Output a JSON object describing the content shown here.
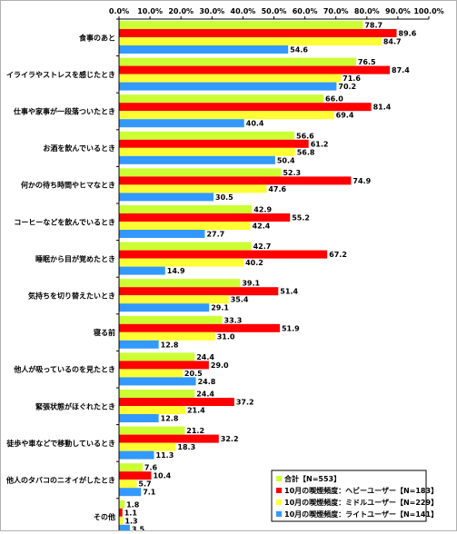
{
  "chart_data": {
    "type": "bar",
    "orientation": "horizontal",
    "title": "",
    "xlabel": "",
    "ylabel": "",
    "xlim": [
      0,
      100
    ],
    "x_ticks": [
      "0.0%",
      "10.0%",
      "20.0%",
      "30.0%",
      "40.0%",
      "50.0%",
      "60.0%",
      "70.0%",
      "80.0%",
      "90.0%",
      "100.0%"
    ],
    "grid": false,
    "legend_position": "bottom-right",
    "categories": [
      "食事のあと",
      "イライラやストレスを感じたとき",
      "仕事や家事が一段落ついたとき",
      "お酒を飲んでいるとき",
      "何かの待ち時間やヒマなとき",
      "コーヒーなどを飲んでいるとき",
      "睡眠から目が覚めたとき",
      "気持ちを切り替えたいとき",
      "寝る前",
      "他人が吸っているのを見たとき",
      "緊張状態がほぐれたとき",
      "徒歩や車などで移動しているとき",
      "他人のタバコのニオイがしたとき",
      "その他"
    ],
    "series": [
      {
        "name": "合計【N=553】",
        "color": "#ccff33",
        "values": [
          78.7,
          76.5,
          66.0,
          56.6,
          52.3,
          42.9,
          42.7,
          39.1,
          33.3,
          24.4,
          24.4,
          21.2,
          7.6,
          1.8
        ]
      },
      {
        "name": "10月の喫煙頻度：ヘビーユーザー【N=183】",
        "color": "#ff0000",
        "values": [
          89.6,
          87.4,
          81.4,
          61.2,
          74.9,
          55.2,
          67.2,
          51.4,
          51.9,
          29.0,
          37.2,
          32.2,
          10.4,
          1.1
        ]
      },
      {
        "name": "10月の喫煙頻度：ミドルユーザー【N=229】",
        "color": "#ffff33",
        "values": [
          84.7,
          71.6,
          69.4,
          56.8,
          47.6,
          42.4,
          40.2,
          35.4,
          31.0,
          20.5,
          21.4,
          18.3,
          5.7,
          1.3
        ]
      },
      {
        "name": "10月の喫煙頻度：ライトユーザー【N=141】",
        "color": "#3399ff",
        "values": [
          54.6,
          70.2,
          40.4,
          50.4,
          30.5,
          27.7,
          14.9,
          29.1,
          12.8,
          24.8,
          12.8,
          11.3,
          7.1,
          3.5
        ]
      }
    ]
  }
}
